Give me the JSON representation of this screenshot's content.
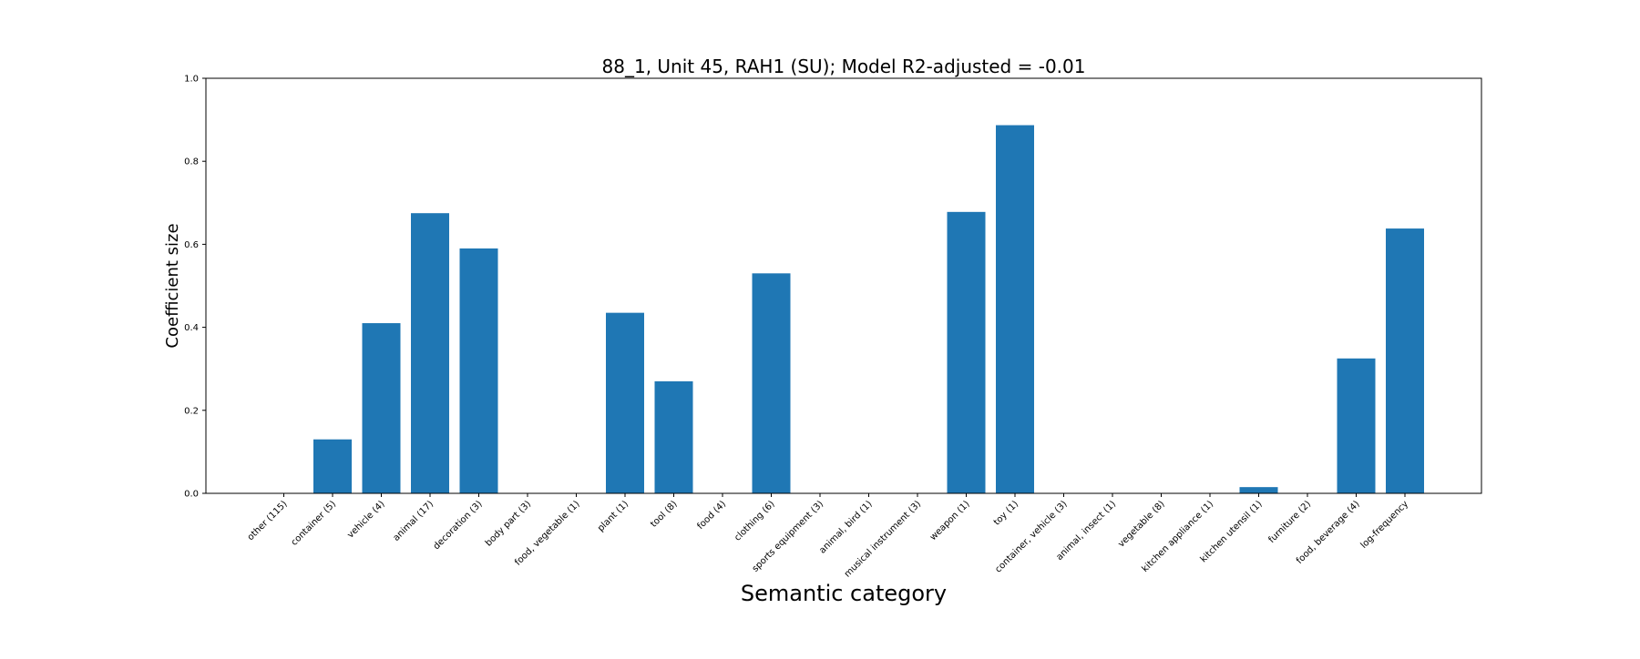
{
  "chart_data": {
    "type": "bar",
    "title": "88_1, Unit 45, RAH1 (SU); Model R2-adjusted = -0.01",
    "xlabel": "Semantic category",
    "ylabel": "Coefficient size",
    "ylim": [
      0,
      1.0
    ],
    "yticks": [
      "0.0",
      "0.2",
      "0.4",
      "0.6",
      "0.8",
      "1.0"
    ],
    "grid": false,
    "bar_color": "#1f77b4",
    "categories": [
      "other (115)",
      "container (5)",
      "vehicle (4)",
      "animal (17)",
      "decoration (3)",
      "body part (3)",
      "food, vegetable (1)",
      "plant (1)",
      "tool (8)",
      "food (4)",
      "clothing (6)",
      "sports equipment (3)",
      "animal, bird (1)",
      "musical instrument (3)",
      "weapon (1)",
      "toy (1)",
      "container, vehicle (3)",
      "animal, insect (1)",
      "vegetable (8)",
      "kitchen appliance (1)",
      "kitchen utensil (1)",
      "furniture (2)",
      "food, beverage (4)",
      "log-frequency"
    ],
    "values": [
      0,
      0.13,
      0.41,
      0.675,
      0.59,
      0,
      0,
      0.435,
      0.27,
      0,
      0.53,
      0,
      0,
      0,
      0.678,
      0.887,
      0,
      0,
      0,
      0,
      0.015,
      0,
      0.325,
      0.638
    ]
  }
}
